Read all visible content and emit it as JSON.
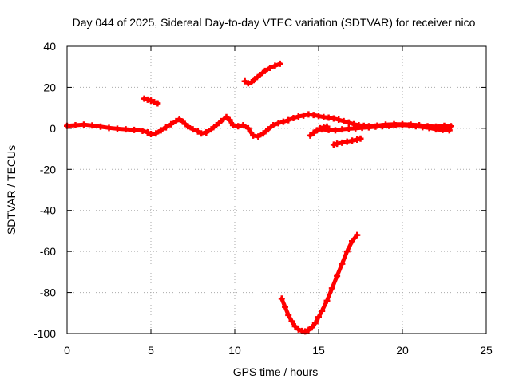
{
  "chart_data": {
    "type": "scatter",
    "title": "Day 044 of 2025, Sidereal Day-to-day VTEC variation (SDTVAR) for receiver nico",
    "xlabel": "GPS time / hours",
    "ylabel": "SDTVAR / TECUs",
    "xlim": [
      0,
      25
    ],
    "ylim": [
      -100,
      40
    ],
    "x_ticks": [
      0,
      5,
      10,
      15,
      20,
      25
    ],
    "y_ticks": [
      -100,
      -80,
      -60,
      -40,
      -20,
      0,
      20,
      40
    ],
    "x_tick_labels": [
      "0",
      "5",
      "10",
      "15",
      "20",
      "25"
    ],
    "y_tick_labels": [
      "-100",
      "-80",
      "-60",
      "-40",
      "-20",
      "0",
      "20",
      "40"
    ],
    "grid": true,
    "marker": "plus",
    "point_color": "#ff0000",
    "series": [
      {
        "x": [
          0.0,
          0.5,
          1.0,
          1.5,
          2.0,
          2.5,
          3.0,
          3.5,
          4.0,
          4.5,
          4.8,
          5.0,
          5.3,
          5.6,
          5.9,
          6.2,
          6.5,
          6.7,
          6.9,
          7.2,
          7.5,
          7.8,
          8.0,
          8.3,
          8.6,
          8.9,
          9.2,
          9.5,
          9.7,
          9.9,
          10.2,
          10.5,
          10.8,
          11.1,
          11.4,
          11.7,
          12.0,
          12.3,
          12.6,
          12.9,
          13.2,
          13.5,
          13.8,
          14.1,
          14.4,
          14.7,
          15.0,
          15.3,
          15.6,
          15.9,
          16.2,
          16.5,
          16.8,
          17.1,
          17.4,
          17.7,
          18.0,
          18.5,
          19.0,
          19.5,
          20.0,
          20.5,
          21.0,
          21.5,
          22.0,
          22.5,
          22.9
        ],
        "y": [
          1.2,
          1.5,
          1.8,
          1.4,
          0.8,
          0.2,
          -0.2,
          -0.5,
          -0.8,
          -1.2,
          -2.0,
          -2.8,
          -2.5,
          -1.0,
          0.5,
          2.0,
          3.5,
          4.5,
          3.2,
          1.0,
          -0.5,
          -1.5,
          -2.5,
          -2.0,
          -0.5,
          1.5,
          3.5,
          5.5,
          4.0,
          1.5,
          1.0,
          1.5,
          0.0,
          -3.5,
          -4.0,
          -2.5,
          -0.5,
          1.5,
          2.5,
          3.2,
          4.0,
          5.0,
          5.8,
          6.2,
          6.8,
          6.5,
          6.0,
          5.5,
          5.2,
          4.8,
          4.2,
          3.5,
          2.8,
          2.0,
          1.5,
          1.2,
          1.0,
          1.3,
          1.8,
          2.0,
          2.0,
          1.8,
          1.5,
          1.0,
          0.8,
          1.2,
          1.0
        ]
      },
      {
        "x": [
          15.2,
          15.6,
          16.0,
          16.4,
          16.8,
          17.2,
          17.6,
          18.0,
          18.4,
          18.8,
          19.2,
          19.6,
          20.0,
          20.4,
          20.8,
          21.2,
          21.6,
          22.0,
          22.4,
          22.8
        ],
        "y": [
          -0.5,
          -0.8,
          -1.0,
          -0.5,
          -0.2,
          0.0,
          0.3,
          0.5,
          0.8,
          1.0,
          1.2,
          1.5,
          1.6,
          1.4,
          1.0,
          0.6,
          0.2,
          -0.5,
          -0.8,
          -1.0
        ]
      },
      {
        "x": [
          14.5,
          14.7,
          14.9,
          15.1,
          15.3,
          15.5
        ],
        "y": [
          -3.5,
          -2.2,
          -1.0,
          0.0,
          0.5,
          0.8
        ]
      },
      {
        "x": [
          4.6,
          4.8,
          5.0,
          5.2,
          5.4
        ],
        "y": [
          14.5,
          14.0,
          13.5,
          12.8,
          12.2
        ]
      },
      {
        "x": [
          10.6,
          10.8,
          11.0,
          11.2,
          11.5,
          11.8,
          12.1,
          12.4,
          12.7
        ],
        "y": [
          23.0,
          22.0,
          22.5,
          24.0,
          26.0,
          28.0,
          29.5,
          30.5,
          31.5
        ]
      },
      {
        "x": [
          15.9,
          16.1,
          16.4,
          16.7,
          17.0,
          17.3,
          17.5
        ],
        "y": [
          -8.0,
          -7.5,
          -7.0,
          -6.5,
          -6.0,
          -5.5,
          -5.0
        ]
      },
      {
        "x": [
          12.8,
          13.0,
          13.2,
          13.4,
          13.6,
          13.8,
          14.0,
          14.2,
          14.4,
          14.6,
          14.8,
          15.0,
          15.2,
          15.5,
          15.8,
          16.1,
          16.4,
          16.7,
          17.0,
          17.3
        ],
        "y": [
          -83.0,
          -87.0,
          -91.0,
          -94.0,
          -96.5,
          -98.0,
          -98.8,
          -99.0,
          -98.3,
          -97.0,
          -95.0,
          -92.0,
          -89.0,
          -84.0,
          -78.0,
          -72.0,
          -66.0,
          -60.0,
          -55.0,
          -52.0
        ]
      }
    ]
  }
}
